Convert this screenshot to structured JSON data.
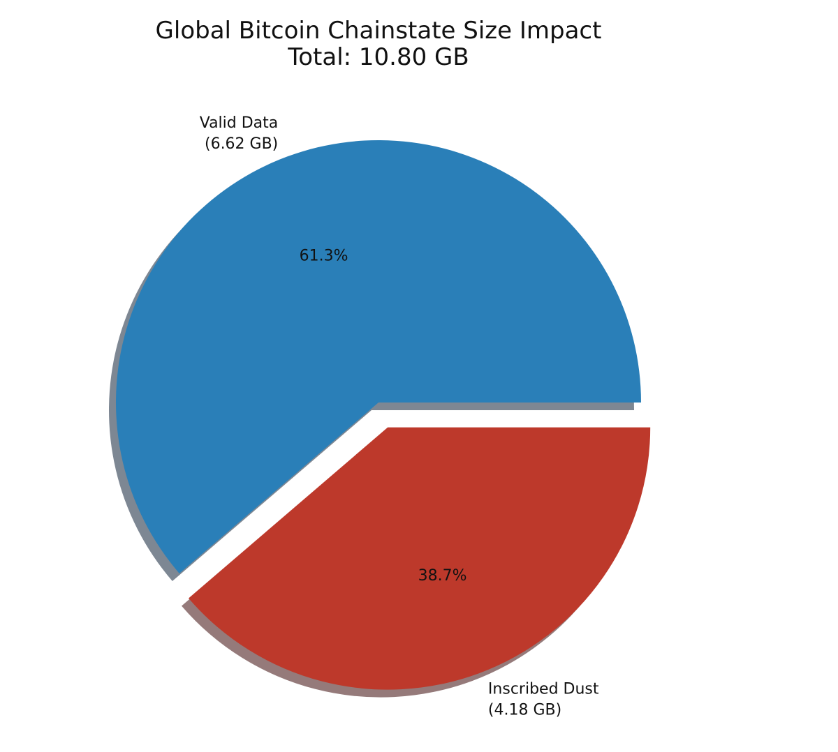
{
  "chart_data": {
    "type": "pie",
    "title": "Global Bitcoin Chainstate Size Impact",
    "subtitle": "Total: 10.80 GB",
    "slices": [
      {
        "name": "Valid Data",
        "value_label": "(6.62 GB)",
        "value": 6.62,
        "percent_label": "61.3%",
        "color": "#2a7fb8",
        "exploded": false
      },
      {
        "name": "Inscribed Dust",
        "value_label": "(4.18 GB)",
        "value": 4.18,
        "percent_label": "38.7%",
        "color": "#bd392b",
        "exploded": true
      }
    ],
    "shadow": true
  }
}
